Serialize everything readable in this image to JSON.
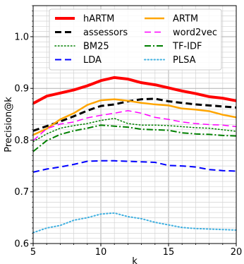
{
  "chart_data": {
    "type": "line",
    "title": "",
    "xlabel": "k",
    "ylabel": "Precision@k",
    "xlim": [
      5,
      20
    ],
    "ylim": [
      0.6,
      1.06
    ],
    "x": [
      5,
      6,
      7,
      8,
      9,
      10,
      11,
      12,
      13,
      14,
      15,
      16,
      17,
      18,
      19,
      20
    ],
    "xticks": [
      5,
      10,
      15,
      20
    ],
    "yticks": [
      0.6,
      0.7,
      0.8,
      0.9,
      1.0
    ],
    "ytick_labels": [
      "0.6",
      "0.7",
      "0.8",
      "0.9",
      "1.0"
    ],
    "grid": {
      "major": true,
      "minor": true
    },
    "legend_position": "top",
    "series": [
      {
        "name": "hARTM",
        "color": "#ff0000",
        "style": "solid",
        "width": 4,
        "values": [
          0.871,
          0.885,
          0.891,
          0.897,
          0.905,
          0.915,
          0.921,
          0.918,
          0.911,
          0.907,
          0.901,
          0.895,
          0.89,
          0.884,
          0.881,
          0.876
        ]
      },
      {
        "name": "assessors",
        "color": "#000000",
        "style": "dashed",
        "width": 3,
        "values": [
          0.818,
          0.827,
          0.836,
          0.846,
          0.857,
          0.866,
          0.869,
          0.875,
          0.879,
          0.88,
          0.875,
          0.872,
          0.869,
          0.867,
          0.865,
          0.863
        ]
      },
      {
        "name": "BM25",
        "color": "#008000",
        "style": "dotted",
        "width": 1.5,
        "values": [
          0.797,
          0.812,
          0.823,
          0.828,
          0.832,
          0.838,
          0.842,
          0.832,
          0.829,
          0.829,
          0.828,
          0.826,
          0.824,
          0.823,
          0.82,
          0.817
        ]
      },
      {
        "name": "LDA",
        "color": "#0000ff",
        "style": "dashed",
        "width": 2,
        "values": [
          0.738,
          0.744,
          0.748,
          0.753,
          0.759,
          0.76,
          0.76,
          0.759,
          0.758,
          0.757,
          0.751,
          0.75,
          0.748,
          0.743,
          0.741,
          0.74
        ]
      },
      {
        "name": "ARTM",
        "color": "#ffa500",
        "style": "solid",
        "width": 2.5,
        "values": [
          0.81,
          0.822,
          0.84,
          0.852,
          0.868,
          0.877,
          0.879,
          0.876,
          0.872,
          0.869,
          0.867,
          0.861,
          0.859,
          0.856,
          0.849,
          0.844
        ]
      },
      {
        "name": "word2vec",
        "color": "#ff00ff",
        "style": "dashed",
        "width": 1.5,
        "values": [
          0.799,
          0.822,
          0.831,
          0.835,
          0.843,
          0.848,
          0.852,
          0.857,
          0.852,
          0.844,
          0.84,
          0.835,
          0.832,
          0.83,
          0.829,
          0.826
        ]
      },
      {
        "name": "TF-IDF",
        "color": "#008000",
        "style": "dashdot",
        "width": 2,
        "values": [
          0.778,
          0.799,
          0.811,
          0.818,
          0.823,
          0.829,
          0.827,
          0.825,
          0.821,
          0.82,
          0.819,
          0.814,
          0.812,
          0.811,
          0.809,
          0.808
        ]
      },
      {
        "name": "PLSA",
        "color": "#40b0e0",
        "style": "dotted",
        "width": 2,
        "values": [
          0.621,
          0.63,
          0.635,
          0.645,
          0.65,
          0.657,
          0.659,
          0.652,
          0.648,
          0.641,
          0.636,
          0.631,
          0.629,
          0.628,
          0.627,
          0.626
        ]
      }
    ]
  }
}
